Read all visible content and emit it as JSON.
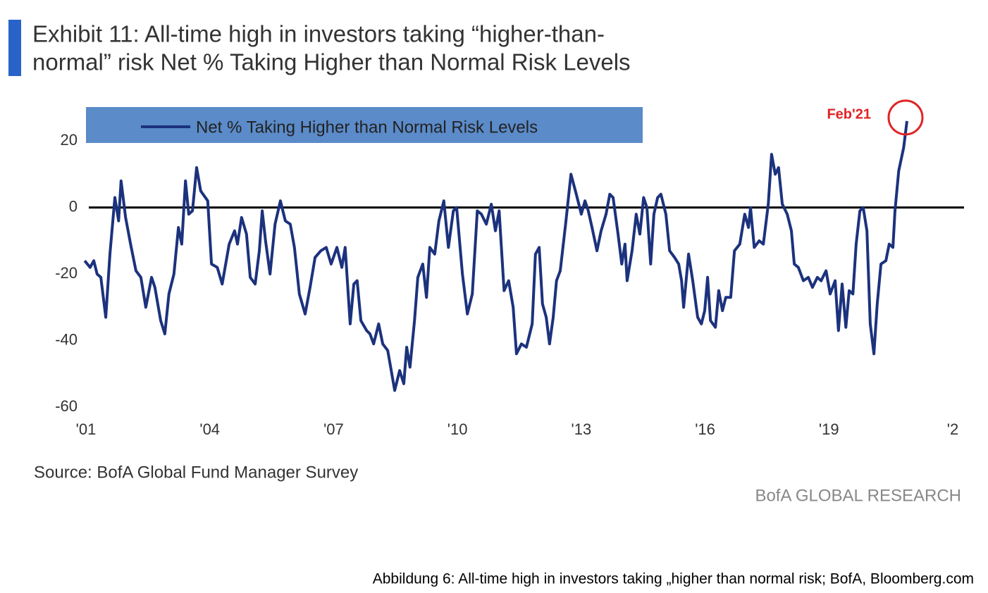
{
  "chart_data": {
    "type": "line",
    "title": [
      "Exhibit 11: All-time high in investors taking “higher-than-",
      "normal” risk Net % Taking Higher than Normal Risk Levels"
    ],
    "source": "Source: BofA Global Fund Manager Survey",
    "brand": "BofA GLOBAL RESEARCH",
    "caption": "Abbildung 6: All-time high in investors taking „higher than normal risk; BofA, Bloomberg.com",
    "annotation": "Feb'21",
    "x": [
      2000.97,
      2001.1,
      2001.19,
      2001.27,
      2001.36,
      2001.48,
      2001.58,
      2001.7,
      2001.79,
      2001.85,
      2001.96,
      2002.08,
      2002.21,
      2002.33,
      2002.45,
      2002.59,
      2002.67,
      2002.81,
      2002.91,
      2003.01,
      2003.13,
      2003.24,
      2003.32,
      2003.41,
      2003.49,
      2003.58,
      2003.68,
      2003.78,
      2003.95,
      2004.04,
      2004.18,
      2004.3,
      2004.47,
      2004.6,
      2004.67,
      2004.77,
      2004.89,
      2004.98,
      2005.1,
      2005.2,
      2005.27,
      2005.35,
      2005.46,
      2005.58,
      2005.71,
      2005.83,
      2005.95,
      2006.05,
      2006.17,
      2006.31,
      2006.43,
      2006.55,
      2006.69,
      2006.82,
      2006.94,
      2007.08,
      2007.2,
      2007.28,
      2007.4,
      2007.49,
      2007.57,
      2007.66,
      2007.8,
      2007.88,
      2007.97,
      2008.09,
      2008.19,
      2008.31,
      2008.48,
      2008.6,
      2008.7,
      2008.77,
      2008.85,
      2008.96,
      2009.04,
      2009.16,
      2009.25,
      2009.33,
      2009.45,
      2009.55,
      2009.67,
      2009.78,
      2009.9,
      2009.98,
      2010.12,
      2010.24,
      2010.36,
      2010.48,
      2010.58,
      2010.7,
      2010.82,
      2010.92,
      2011.01,
      2011.13,
      2011.24,
      2011.35,
      2011.43,
      2011.55,
      2011.67,
      2011.81,
      2011.89,
      2011.98,
      2012.06,
      2012.15,
      2012.23,
      2012.32,
      2012.4,
      2012.49,
      2012.62,
      2012.75,
      2012.88,
      2013.0,
      2013.09,
      2013.17,
      2013.26,
      2013.38,
      2013.48,
      2013.6,
      2013.69,
      2013.77,
      2013.89,
      2013.98,
      2014.06,
      2014.11,
      2014.23,
      2014.33,
      2014.42,
      2014.51,
      2014.59,
      2014.68,
      2014.76,
      2014.85,
      2014.93,
      2015.05,
      2015.14,
      2015.26,
      2015.36,
      2015.43,
      2015.48,
      2015.6,
      2015.7,
      2015.82,
      2015.91,
      2015.99,
      2016.06,
      2016.13,
      2016.25,
      2016.33,
      2016.42,
      2016.5,
      2016.62,
      2016.71,
      2016.84,
      2016.96,
      2017.05,
      2017.1,
      2017.19,
      2017.31,
      2017.41,
      2017.53,
      2017.61,
      2017.7,
      2017.78,
      2017.87,
      2017.99,
      2018.09,
      2018.16,
      2018.26,
      2018.38,
      2018.5,
      2018.6,
      2018.72,
      2018.81,
      2018.93,
      2019.03,
      2019.15,
      2019.23,
      2019.32,
      2019.41,
      2019.49,
      2019.58,
      2019.66,
      2019.75,
      2019.83,
      2019.92,
      2020.0,
      2020.09,
      2020.17,
      2020.26,
      2020.38,
      2020.46,
      2020.55,
      2020.6,
      2020.69,
      2020.81,
      2020.89
    ],
    "series": [
      {
        "name": "Net % Taking Higher than Normal Risk Levels",
        "color": "#1c327d",
        "values": [
          -16,
          -18,
          -16,
          -20,
          -21,
          -33,
          -14,
          3,
          -4,
          8,
          -3,
          -11,
          -19,
          -21,
          -30,
          -21,
          -24,
          -34,
          -38,
          -26,
          -20,
          -6,
          -11,
          8,
          -2,
          -1,
          12,
          5,
          2,
          -17,
          -18,
          -23,
          -11,
          -7,
          -11,
          -3,
          -8,
          -21,
          -23,
          -13,
          -1,
          -10,
          -20,
          -5,
          2,
          -4,
          -5,
          -12,
          -26,
          -32,
          -24,
          -15,
          -13,
          -12,
          -17,
          -12,
          -18,
          -12,
          -35,
          -23,
          -22,
          -34,
          -37,
          -38,
          -41,
          -35,
          -41,
          -43,
          -55,
          -49,
          -53,
          -42,
          -48,
          -34,
          -21,
          -17,
          -27,
          -12,
          -14,
          -4,
          2,
          -12,
          -1,
          0,
          -20,
          -32,
          -26,
          -1,
          -2,
          -5,
          1,
          -7,
          -1,
          -25,
          -22,
          -30,
          -44,
          -41,
          -42,
          -35,
          -14,
          -12,
          -29,
          -33,
          -41,
          -33,
          -22,
          -19,
          -5,
          10,
          4,
          -2,
          2,
          -1,
          -6,
          -13,
          -7,
          -2,
          4,
          3,
          -8,
          -17,
          -11,
          -22,
          -13,
          -2,
          -8,
          3,
          0,
          -17,
          -2,
          3,
          4,
          -2,
          -13,
          -15,
          -17,
          -22,
          -30,
          -14,
          -22,
          -33,
          -35,
          -31,
          -21,
          -34,
          -36,
          -25,
          -31,
          -27,
          -27,
          -13,
          -11,
          -2,
          -6,
          0,
          -12,
          -10,
          -11,
          1,
          16,
          10,
          12,
          1,
          -2,
          -7,
          -17,
          -18,
          -22,
          -21,
          -24,
          -21,
          -22,
          -19,
          -26,
          -22,
          -37,
          -23,
          -36,
          -25,
          -26,
          -11,
          -1,
          0,
          -7,
          -35,
          -44,
          -29,
          -17,
          -16,
          -11,
          -12,
          -1,
          11,
          18,
          26
        ]
      }
    ],
    "xlim": [
      2001,
      2022
    ],
    "xticks": [
      {
        "value": 2001,
        "label": "'01"
      },
      {
        "value": 2004,
        "label": "'04"
      },
      {
        "value": 2007,
        "label": "'07"
      },
      {
        "value": 2010,
        "label": "'10"
      },
      {
        "value": 2013,
        "label": "'13"
      },
      {
        "value": 2016,
        "label": "'16"
      },
      {
        "value": 2019,
        "label": "'19"
      },
      {
        "value": 2022,
        "label": "'2"
      }
    ],
    "ylim": [
      -60,
      30
    ],
    "yticks": [
      20,
      0,
      -20,
      -40,
      -60
    ]
  }
}
